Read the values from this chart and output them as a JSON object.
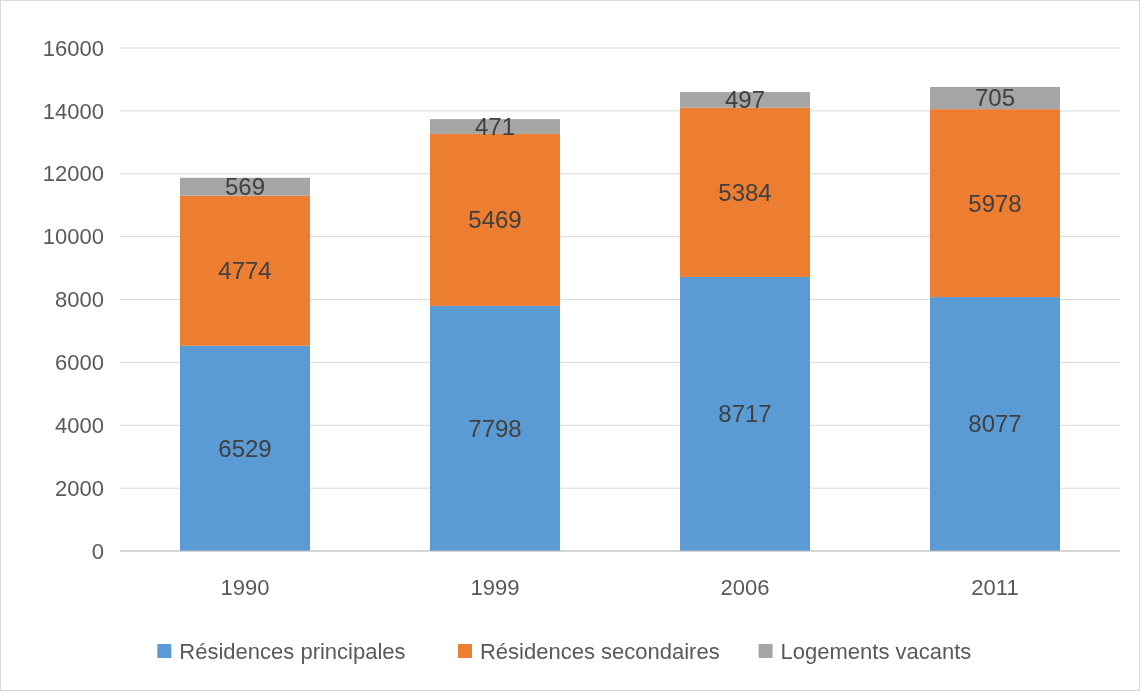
{
  "chart_data": {
    "type": "bar",
    "stacked": true,
    "categories": [
      "1990",
      "1999",
      "2006",
      "2011"
    ],
    "series": [
      {
        "name": "Résidences principales",
        "color": "#5b9bd5",
        "values": [
          6529,
          7798,
          8717,
          8077
        ]
      },
      {
        "name": "Résidences secondaires",
        "color": "#ed7d31",
        "values": [
          4774,
          5469,
          5384,
          5978
        ]
      },
      {
        "name": "Logements vacants",
        "color": "#a5a5a5",
        "values": [
          569,
          471,
          497,
          705
        ]
      }
    ],
    "ylim": [
      0,
      16000
    ],
    "yticks": [
      0,
      2000,
      4000,
      6000,
      8000,
      10000,
      12000,
      14000,
      16000
    ],
    "grid": "y",
    "legend": "bottom",
    "data_labels": true
  }
}
